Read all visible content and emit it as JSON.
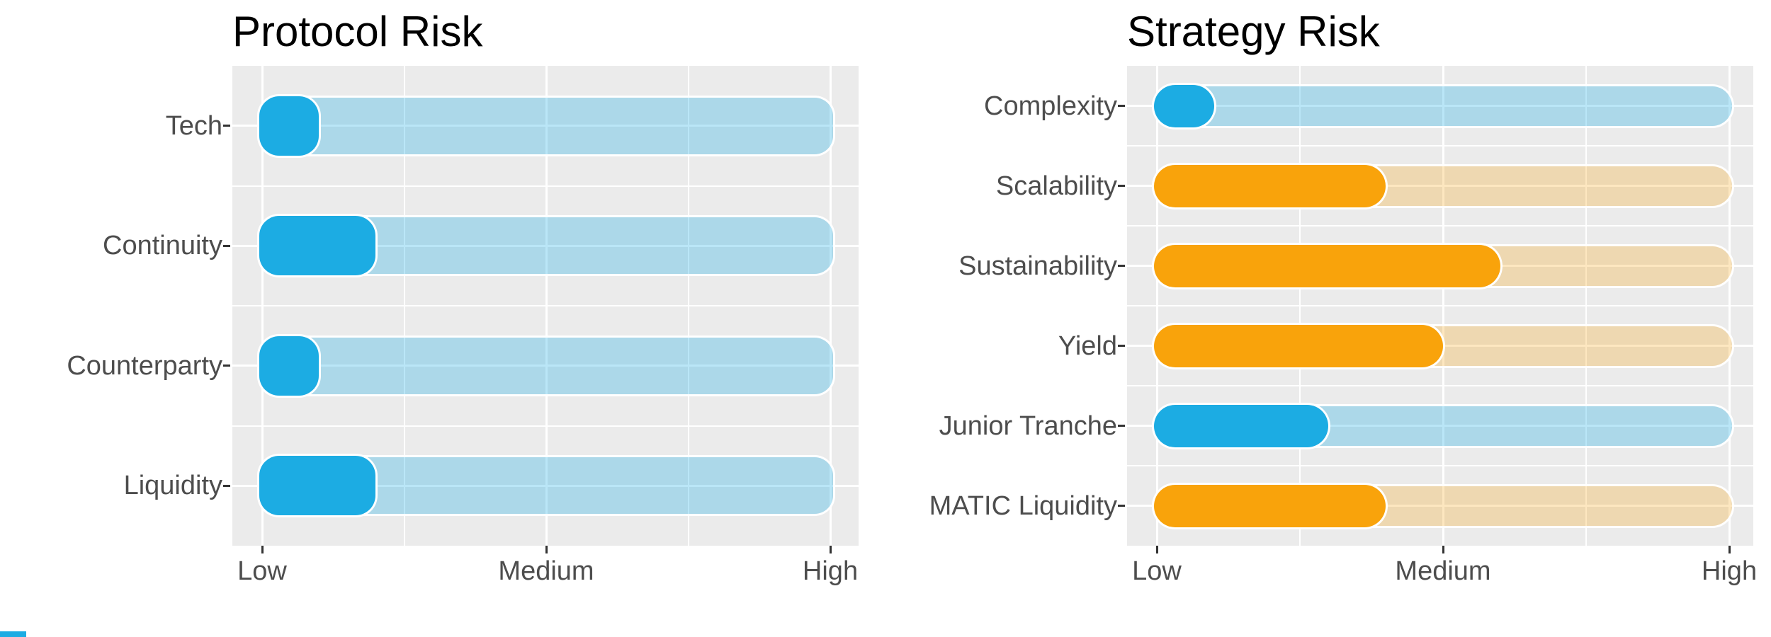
{
  "palette": {
    "bar_blue": "#1CACE3",
    "bar_orange": "#F9A30B",
    "track_blue_rgba": "rgba(28,172,227,0.30)",
    "track_tan_rgba": "rgba(249,163,11,0.26)",
    "panel_bg": "#EBEBEB",
    "gridline": "#FFFFFF",
    "axis_text": "#4D4D4D",
    "title_text": "#000000",
    "tick_mark": "#333333",
    "accent_strip": "#1CACE3"
  },
  "chart_data": [
    {
      "type": "bar",
      "orientation": "horizontal",
      "title": "Protocol Risk",
      "categories": [
        "Tech",
        "Continuity",
        "Counterparty",
        "Liquidity"
      ],
      "values": [
        1,
        2,
        1,
        2
      ],
      "bar_colors": [
        "blue",
        "blue",
        "blue",
        "blue"
      ],
      "xlabel_ticks": [
        "Low",
        "Medium",
        "High"
      ],
      "tick_values": [
        0,
        5,
        10
      ],
      "xlim": [
        0,
        10
      ],
      "xlabel": "",
      "ylabel": "",
      "grid": "white major and minor gridlines on gray panel",
      "legend": "none",
      "track": "full-range rounded track behind each bar ending at High"
    },
    {
      "type": "bar",
      "orientation": "horizontal",
      "title": "Strategy Risk",
      "categories": [
        "Complexity",
        "Scalability",
        "Sustainability",
        "Yield",
        "Junior Tranche",
        "MATIC Liquidity"
      ],
      "values": [
        1,
        4,
        6,
        5,
        3,
        4
      ],
      "bar_colors": [
        "blue",
        "orange",
        "orange",
        "orange",
        "blue",
        "orange"
      ],
      "xlabel_ticks": [
        "Low",
        "Medium",
        "High"
      ],
      "tick_values": [
        0,
        5,
        10
      ],
      "xlim": [
        0,
        10
      ],
      "xlabel": "",
      "ylabel": "",
      "grid": "white major and minor gridlines on gray panel",
      "legend": "none",
      "track": "full-range pill track behind each bar ending at High"
    }
  ],
  "footer": {
    "accent_strip_color": "#1CACE3"
  }
}
